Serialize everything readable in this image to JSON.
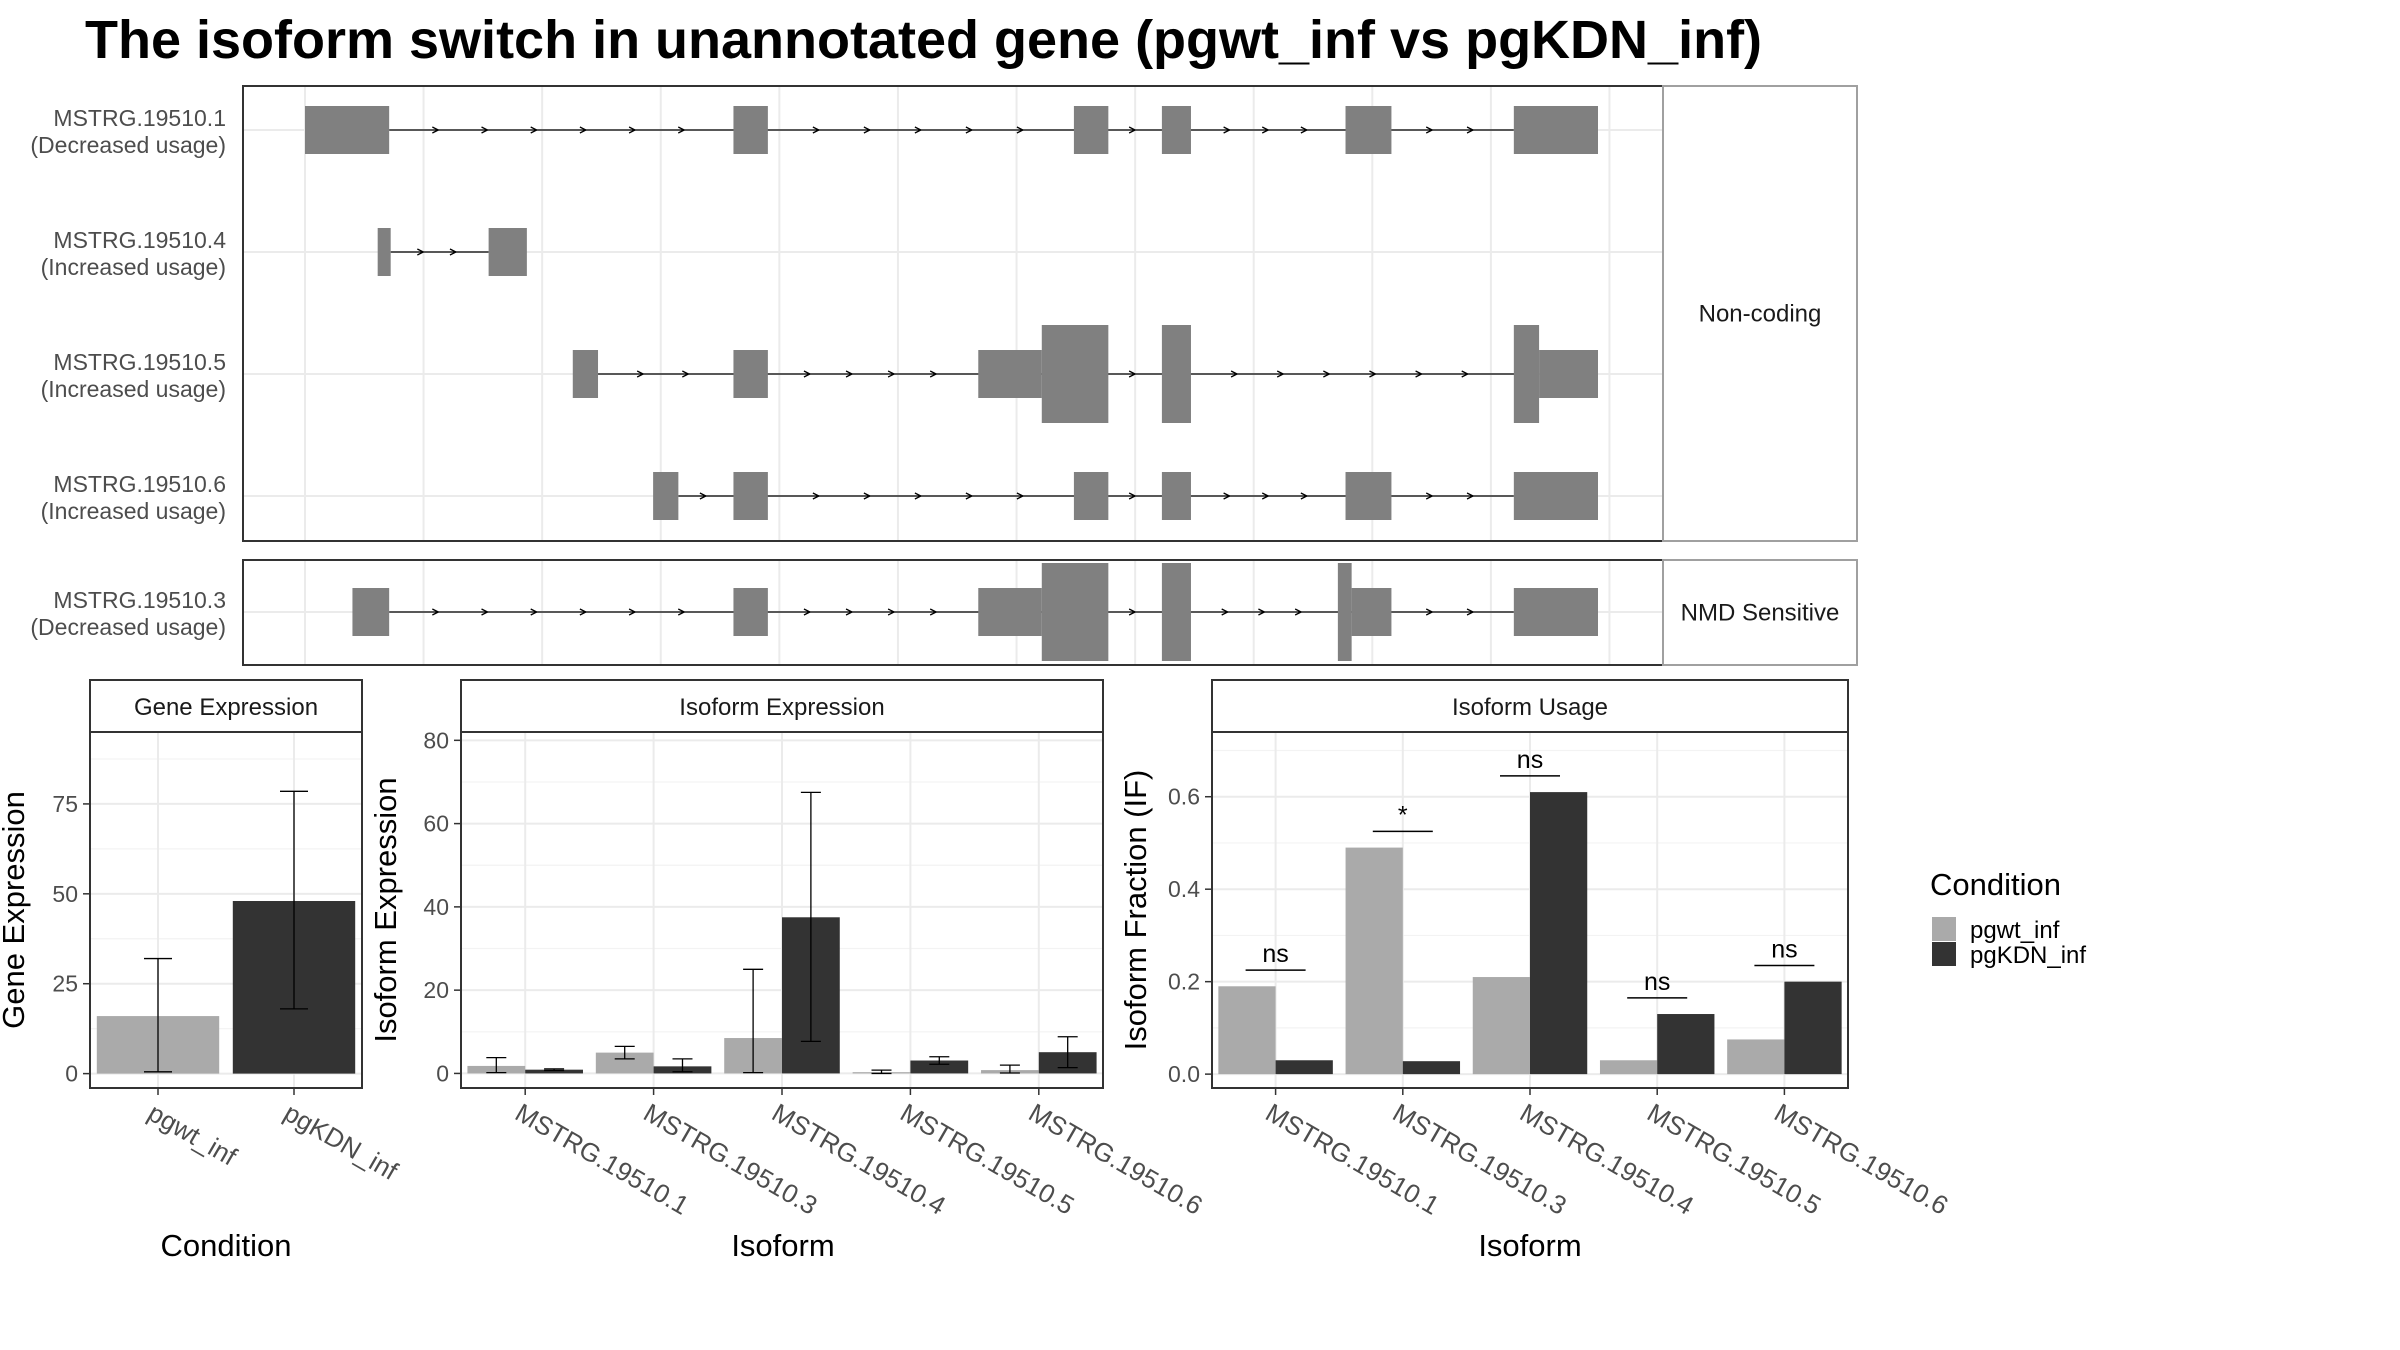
{
  "title": "The isoform switch in unannotated gene (pgwt_inf vs pgKDN_inf)",
  "colors": {
    "pgwt_inf": "#AAAAAA",
    "pgKDN_inf": "#333333",
    "exon": "#808080",
    "intron": "#000000",
    "panel_border": "#333333",
    "strip_border": "#A0A0A0",
    "grid": "#EBEBEB"
  },
  "structure": {
    "groups": [
      {
        "strip": "Non-coding",
        "isoforms": [
          {
            "id": "MSTRG.19510.1",
            "usage": "(Decreased usage)",
            "exons": [
              [
                1000,
                1110,
                "thin"
              ],
              [
                1560,
                1605,
                "thin"
              ],
              [
                2005,
                2050,
                "thin"
              ],
              [
                2120,
                2158,
                "thin"
              ],
              [
                2360,
                2420,
                "thin"
              ],
              [
                2580,
                2690,
                "thin"
              ]
            ]
          },
          {
            "id": "MSTRG.19510.4",
            "usage": "(Increased usage)",
            "exons": [
              [
                1095,
                1112,
                "thin"
              ],
              [
                1240,
                1290,
                "thin"
              ]
            ]
          },
          {
            "id": "MSTRG.19510.5",
            "usage": "(Increased usage)",
            "exons": [
              [
                1350,
                1383,
                "thin"
              ],
              [
                1560,
                1605,
                "thin"
              ],
              [
                1880,
                1963,
                "thin"
              ],
              [
                1963,
                2050,
                "thick"
              ],
              [
                2120,
                2158,
                "thick"
              ],
              [
                2580,
                2613,
                "thick"
              ],
              [
                2613,
                2690,
                "thin"
              ]
            ]
          },
          {
            "id": "MSTRG.19510.6",
            "usage": "(Increased usage)",
            "exons": [
              [
                1455,
                1488,
                "thin"
              ],
              [
                1560,
                1605,
                "thin"
              ],
              [
                2005,
                2050,
                "thin"
              ],
              [
                2120,
                2158,
                "thin"
              ],
              [
                2360,
                2420,
                "thin"
              ],
              [
                2580,
                2690,
                "thin"
              ]
            ]
          }
        ]
      },
      {
        "strip": "NMD Sensitive",
        "isoforms": [
          {
            "id": "MSTRG.19510.3",
            "usage": "(Decreased usage)",
            "exons": [
              [
                1062,
                1110,
                "thin"
              ],
              [
                1560,
                1605,
                "thin"
              ],
              [
                1880,
                1963,
                "thin"
              ],
              [
                1963,
                2050,
                "thick"
              ],
              [
                2120,
                2158,
                "thick"
              ],
              [
                2350,
                2368,
                "thick"
              ],
              [
                2368,
                2420,
                "thin"
              ],
              [
                2580,
                2690,
                "thin"
              ]
            ]
          }
        ]
      }
    ]
  },
  "legend": {
    "title": "Condition",
    "items": [
      "pgwt_inf",
      "pgKDN_inf"
    ]
  },
  "chart_data": [
    {
      "type": "bar",
      "strip": "Gene Expression",
      "xlabel": "Condition",
      "ylabel": "Gene Expression",
      "ylim": [
        -4,
        95
      ],
      "yticks": [
        0,
        25,
        50,
        75
      ],
      "categories": [
        "pgwt_inf",
        "pgKDN_inf"
      ],
      "values": [
        16,
        48
      ],
      "error_low": [
        0.5,
        18
      ],
      "error_high": [
        32,
        78.5
      ]
    },
    {
      "type": "bar",
      "strip": "Isoform Expression",
      "xlabel": "Isoform",
      "ylabel": "Isoform Expression",
      "ylim": [
        -3.5,
        82
      ],
      "yticks": [
        0,
        20,
        40,
        60,
        80
      ],
      "categories": [
        "MSTRG.19510.1",
        "MSTRG.19510.3",
        "MSTRG.19510.4",
        "MSTRG.19510.5",
        "MSTRG.19510.6"
      ],
      "series": [
        {
          "name": "pgwt_inf",
          "values": [
            1.8,
            5.0,
            8.5,
            0.3,
            0.8
          ],
          "error_low": [
            0.2,
            3.5,
            0.2,
            0.0,
            0.1
          ],
          "error_high": [
            3.8,
            6.5,
            25.0,
            0.8,
            2.0
          ]
        },
        {
          "name": "pgKDN_inf",
          "values": [
            0.9,
            1.7,
            37.5,
            3.1,
            5.1
          ],
          "error_low": [
            0.7,
            0.4,
            7.7,
            2.2,
            1.4
          ],
          "error_high": [
            1.1,
            3.5,
            67.5,
            4.0,
            8.8
          ]
        }
      ]
    },
    {
      "type": "bar",
      "strip": "Isoform Usage",
      "xlabel": "Isoform",
      "ylabel": "Isoform Fraction (IF)",
      "ylim": [
        -0.03,
        0.74
      ],
      "yticks": [
        "0.0",
        "0.2",
        "0.4",
        "0.6"
      ],
      "categories": [
        "MSTRG.19510.1",
        "MSTRG.19510.3",
        "MSTRG.19510.4",
        "MSTRG.19510.5",
        "MSTRG.19510.6"
      ],
      "series": [
        {
          "name": "pgwt_inf",
          "values": [
            0.19,
            0.49,
            0.21,
            0.03,
            0.075
          ]
        },
        {
          "name": "pgKDN_inf",
          "values": [
            0.03,
            0.028,
            0.61,
            0.13,
            0.2
          ]
        }
      ],
      "significance": [
        {
          "label": "ns",
          "y": 0.225
        },
        {
          "label": "*",
          "y": 0.525
        },
        {
          "label": "ns",
          "y": 0.645
        },
        {
          "label": "ns",
          "y": 0.165
        },
        {
          "label": "ns",
          "y": 0.235
        }
      ]
    }
  ]
}
